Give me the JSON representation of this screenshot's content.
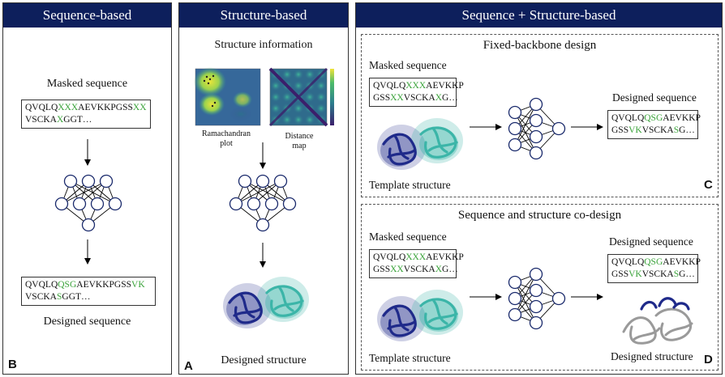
{
  "panels": {
    "seq": {
      "header": "Sequence-based",
      "masked_label": "Masked sequence",
      "masked_seq": [
        [
          {
            "t": "QVQLQ"
          },
          {
            "t": "XXX",
            "g": true
          },
          {
            "t": "AEVKKPGSS"
          },
          {
            "t": "XX",
            "g": true
          }
        ],
        [
          {
            "t": "VSCKA"
          },
          {
            "t": "X",
            "g": true
          },
          {
            "t": "GGT…"
          }
        ]
      ],
      "designed_seq": [
        [
          {
            "t": "QVQLQ"
          },
          {
            "t": "QSG",
            "g": true
          },
          {
            "t": "AEVKKPGSS"
          },
          {
            "t": "VK",
            "g": true
          }
        ],
        [
          {
            "t": "VSCKA"
          },
          {
            "t": "S",
            "g": true
          },
          {
            "t": "GGT…"
          }
        ]
      ],
      "designed_label": "Designed sequence",
      "letter": "B"
    },
    "struct": {
      "header": "Structure-based",
      "info_label": "Structure information",
      "rama_label": "Ramachandran\nplot",
      "dist_label": "Distance\nmap",
      "designed_label": "Designed structure",
      "letter": "A"
    },
    "both": {
      "header": "Sequence + Structure-based",
      "fixed": {
        "title": "Fixed-backbone design",
        "masked_label": "Masked sequence",
        "masked_seq": [
          [
            {
              "t": "QVQLQ"
            },
            {
              "t": "XXX",
              "g": true
            },
            {
              "t": "AEVKKP"
            }
          ],
          [
            {
              "t": "GSS"
            },
            {
              "t": "XX",
              "g": true
            },
            {
              "t": "VSCKA"
            },
            {
              "t": "X",
              "g": true
            },
            {
              "t": "G…"
            }
          ]
        ],
        "designed_label": "Designed sequence",
        "designed_seq": [
          [
            {
              "t": "QVQLQ"
            },
            {
              "t": "QSG",
              "g": true
            },
            {
              "t": "AEVKKP"
            }
          ],
          [
            {
              "t": "GSS"
            },
            {
              "t": "VK",
              "g": true
            },
            {
              "t": "VSCKA"
            },
            {
              "t": "S",
              "g": true
            },
            {
              "t": "G…"
            }
          ]
        ],
        "template_label": "Template structure",
        "letter": "C"
      },
      "codesign": {
        "title": "Sequence and structure co-design",
        "masked_label": "Masked sequence",
        "masked_seq": [
          [
            {
              "t": "QVQLQ"
            },
            {
              "t": "XXX",
              "g": true
            },
            {
              "t": "AEVKKP"
            }
          ],
          [
            {
              "t": "GSS"
            },
            {
              "t": "XX",
              "g": true
            },
            {
              "t": "VSCKA"
            },
            {
              "t": "X",
              "g": true
            },
            {
              "t": "G…"
            }
          ]
        ],
        "designed_seq_label": "Designed sequence",
        "designed_seq": [
          [
            {
              "t": "QVQLQ"
            },
            {
              "t": "QSG",
              "g": true
            },
            {
              "t": "AEVKKP"
            }
          ],
          [
            {
              "t": "GSS"
            },
            {
              "t": "VK",
              "g": true
            },
            {
              "t": "VSCKA"
            },
            {
              "t": "S",
              "g": true
            },
            {
              "t": "G…"
            }
          ]
        ],
        "template_label": "Template structure",
        "designed_struct_label": "Designed structure",
        "letter": "D"
      }
    }
  },
  "colors": {
    "header_bg": "#0d1f5c",
    "mask_green": "#3aa33a",
    "node_stroke": "#1a2a6c",
    "protein_dark": "#1f2a8a",
    "protein_teal": "#3bb5a8",
    "protein_gray": "#9a9a9a"
  }
}
